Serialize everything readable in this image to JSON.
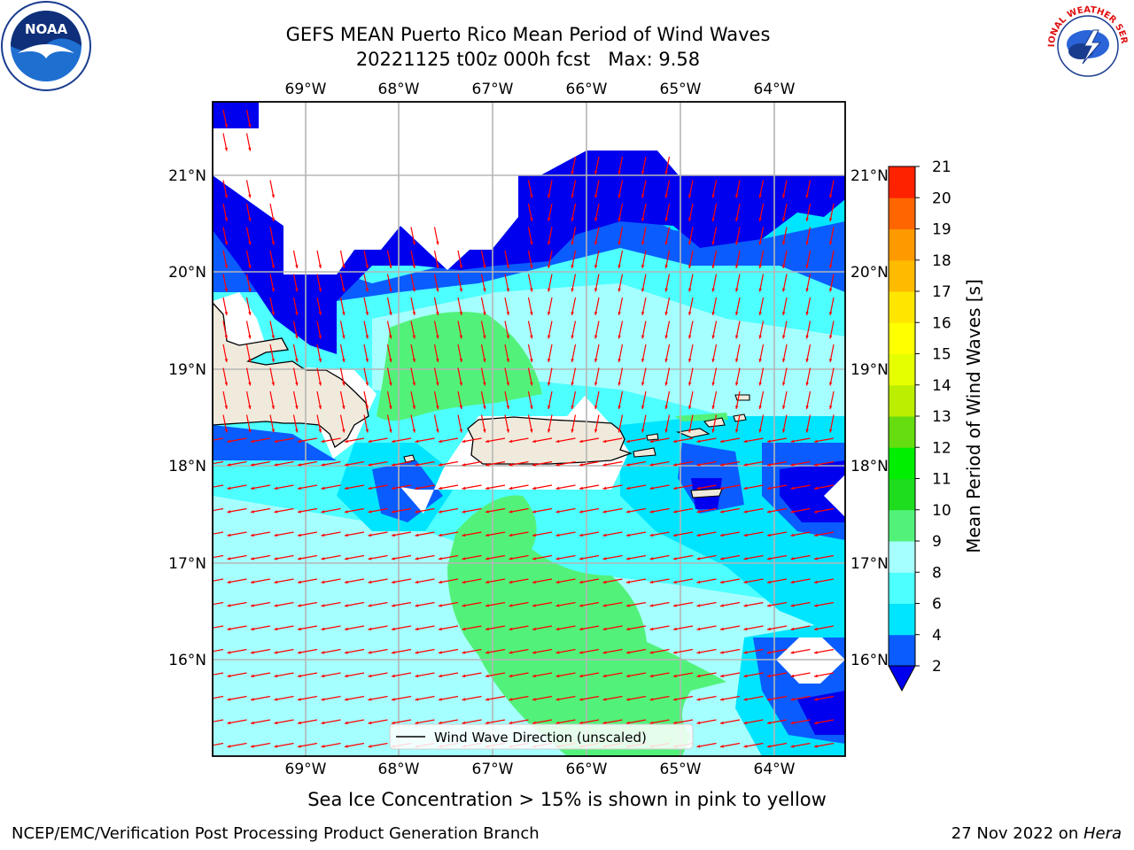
{
  "title_line1": "GEFS MEAN Puerto Rico Mean Period of Wind Waves",
  "title_line2": "20221125 t00z 000h fcst   Max: 9.58",
  "caption": "Sea Ice Concentration > 15% is shown in pink to yellow",
  "footer_left": "NCEP/EMC/Verification Post Processing Product Generation Branch",
  "footer_date": "27 Nov 2022 on ",
  "footer_host": "Hera",
  "logos": {
    "left": "noaa-logo",
    "right": "nws-logo"
  },
  "map": {
    "lon_ticks": [
      "69°W",
      "68°W",
      "67°W",
      "66°W",
      "65°W",
      "64°W"
    ],
    "lat_ticks": [
      "21°N",
      "20°N",
      "19°N",
      "18°N",
      "17°N",
      "16°N"
    ],
    "legend_label": "Wind Wave Direction (unscaled)",
    "arrow_color": "#ff0000",
    "land_color": "#efeadc",
    "missing_color": "#ffffff"
  },
  "colorbar": {
    "label": "Mean Period of Wind Waves [s]",
    "ticks": [
      "2",
      "4",
      "6",
      "8",
      "9",
      "10",
      "11",
      "12",
      "13",
      "14",
      "15",
      "16",
      "17",
      "18",
      "19",
      "20",
      "21"
    ],
    "colors": [
      "#0a5cff",
      "#00e5ff",
      "#4dffff",
      "#a6ffff",
      "#52f27a",
      "#1edc1e",
      "#00ee00",
      "#66dd11",
      "#bbee00",
      "#e6ff00",
      "#ffff00",
      "#ffe600",
      "#ffbb00",
      "#ff9900",
      "#ff6600",
      "#ff2200"
    ],
    "under_color": "#0000ee"
  }
}
